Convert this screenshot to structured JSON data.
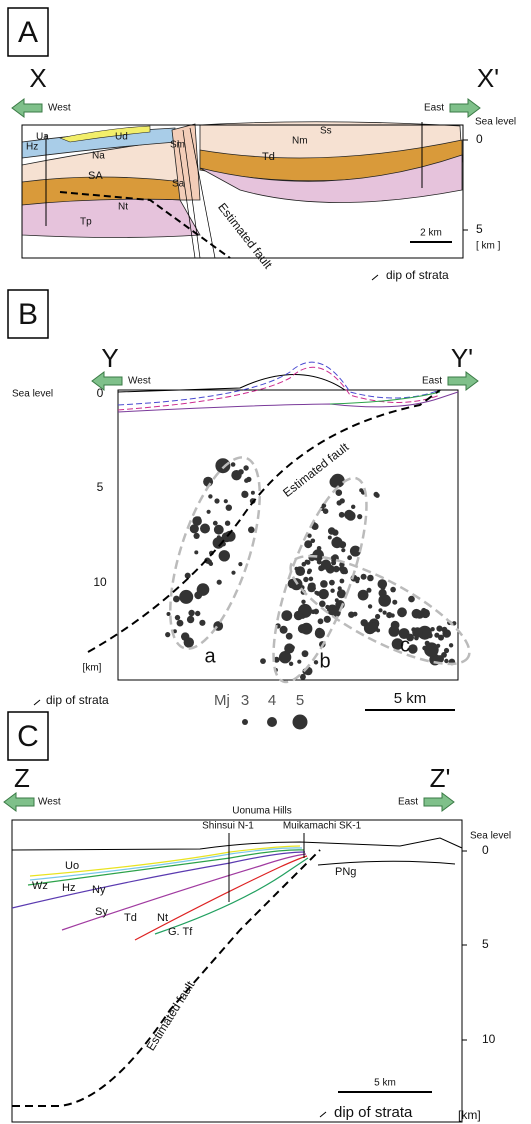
{
  "panels": [
    {
      "label": "A",
      "left_end": "X",
      "right_end": "X'",
      "left_dir": "West",
      "right_dir": "East",
      "sea_level": "Sea level",
      "depth_ticks": [
        "0",
        "5"
      ],
      "depth_unit": "[ km ]",
      "scale_bar": "2 km",
      "fault_label": "Estimated fault",
      "legend": "dip of strata",
      "units": [
        "Ua",
        "Ud",
        "Hz",
        "Na",
        "Sm",
        "SA",
        "Sa",
        "Nt",
        "Tp",
        "Ss",
        "Nm",
        "Td"
      ]
    },
    {
      "label": "B",
      "left_end": "Y",
      "right_end": "Y'",
      "left_dir": "West",
      "right_dir": "East",
      "sea_level": "Sea level",
      "depth_ticks": [
        "0",
        "5",
        "10"
      ],
      "depth_unit": "[km]",
      "fault_label": "Estimated fault",
      "clusters": [
        "a",
        "b",
        "c"
      ],
      "legend": "dip of strata",
      "magnitude": "Mj",
      "magnitudes": [
        "3",
        "4",
        "5"
      ],
      "scale_bar": "5 km"
    },
    {
      "label": "C",
      "left_end": "Z",
      "right_end": "Z'",
      "left_dir": "West",
      "right_dir": "East",
      "area": "Uonuma Hills",
      "wells": [
        "Shinsui N-1",
        "Muikamachi SK-1"
      ],
      "sea_level": "Sea level",
      "depth_ticks": [
        "0",
        "5",
        "10"
      ],
      "depth_unit": "[km]",
      "units": [
        "Uo",
        "Wz",
        "Hz",
        "Ny",
        "Sy",
        "Td",
        "Nt",
        "G. Tf",
        "PNg"
      ],
      "fault_label": "Estimated fault",
      "scale_bar": "5 km",
      "legend": "dip of strata"
    }
  ]
}
